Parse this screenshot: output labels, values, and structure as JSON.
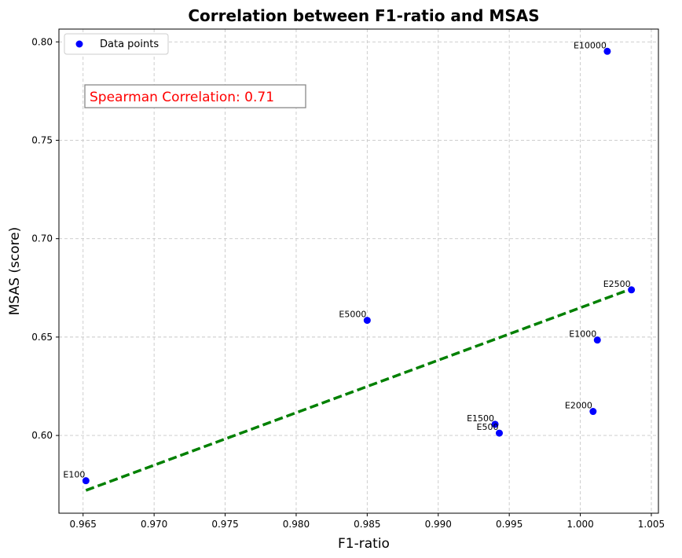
{
  "chart_data": {
    "type": "scatter",
    "title": "Correlation between F1-ratio and MSAS",
    "xlabel": "F1-ratio",
    "ylabel": "MSAS (score)",
    "xlim": [
      0.9633,
      1.0055
    ],
    "ylim": [
      0.5605,
      0.8065
    ],
    "xticks": [
      0.965,
      0.97,
      0.975,
      0.98,
      0.985,
      0.99,
      0.995,
      1.0,
      1.005
    ],
    "xtick_labels": [
      "0.965",
      "0.970",
      "0.975",
      "0.980",
      "0.985",
      "0.990",
      "0.995",
      "1.000",
      "1.005"
    ],
    "yticks": [
      0.6,
      0.65,
      0.7,
      0.75,
      0.8
    ],
    "ytick_labels": [
      "0.60",
      "0.65",
      "0.70",
      "0.75",
      "0.80"
    ],
    "grid": true,
    "legend": {
      "position": "upper-left",
      "entries": [
        "Data points"
      ]
    },
    "colors": {
      "points": "#0000ff",
      "trend": "#008000",
      "annotation": "#ff0000"
    },
    "series": [
      {
        "name": "Data points",
        "points": [
          {
            "label": "E100",
            "x": 0.9652,
            "y": 0.577
          },
          {
            "label": "E500",
            "x": 0.9943,
            "y": 0.6012
          },
          {
            "label": "E1000",
            "x": 1.0012,
            "y": 0.6485
          },
          {
            "label": "E1500",
            "x": 0.994,
            "y": 0.6057
          },
          {
            "label": "E2000",
            "x": 1.0009,
            "y": 0.6122
          },
          {
            "label": "E2500",
            "x": 1.0036,
            "y": 0.674
          },
          {
            "label": "E5000",
            "x": 0.985,
            "y": 0.6585
          },
          {
            "label": "E10000",
            "x": 1.0019,
            "y": 0.7952
          }
        ]
      }
    ],
    "trend_line": {
      "x": [
        0.9652,
        1.0036
      ],
      "y": [
        0.5721,
        0.6745
      ]
    },
    "annotation": "Spearman Correlation: 0.71"
  }
}
